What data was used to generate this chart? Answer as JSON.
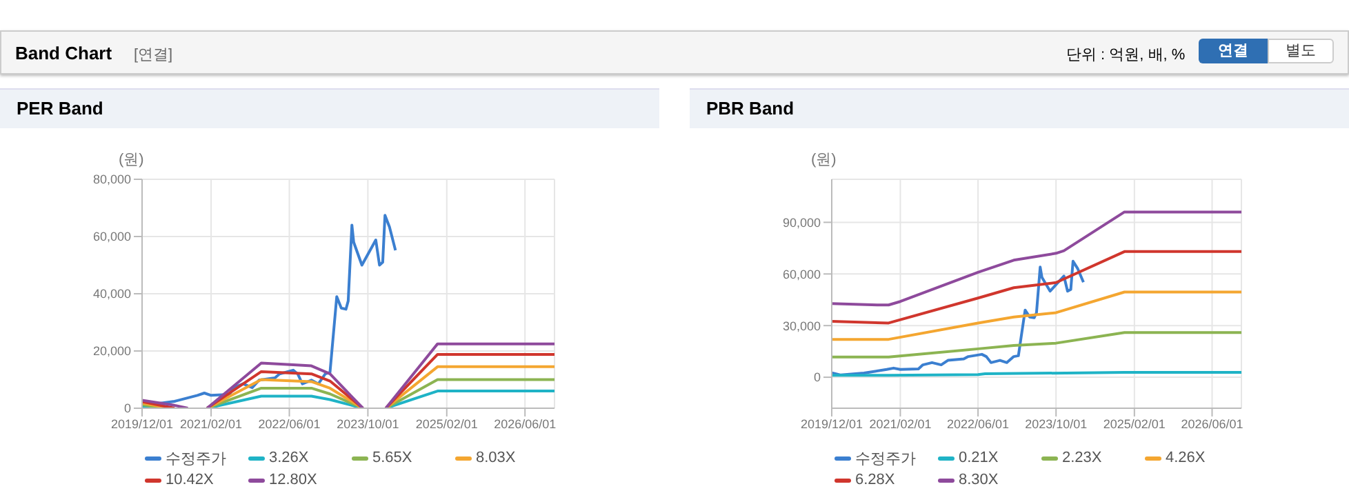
{
  "chart_data": [
    {
      "type": "line",
      "title": "PER Band",
      "ylabel": "(원)",
      "annotations": [
        "Band Chart",
        "[연결]",
        "단위 : 억원, 배, %",
        "연결",
        "별도"
      ],
      "xlim": [
        "2019-12-01",
        "2026-12-01"
      ],
      "xticks": [
        {
          "value": "2019-12-01",
          "label": "2019/12/01"
        },
        {
          "value": "2021-02-01",
          "label": "2021/02/01"
        },
        {
          "value": "2022-06-01",
          "label": "2022/06/01"
        },
        {
          "value": "2023-10-01",
          "label": "2023/10/01"
        },
        {
          "value": "2025-02-01",
          "label": "2025/02/01"
        },
        {
          "value": "2026-06-01",
          "label": "2026/06/01"
        }
      ],
      "ylim": [
        0,
        80000
      ],
      "yticks": [
        {
          "value": 0,
          "label": "0"
        },
        {
          "value": 20000,
          "label": "20,000"
        },
        {
          "value": 40000,
          "label": "40,000"
        },
        {
          "value": 60000,
          "label": "60,000"
        },
        {
          "value": 80000,
          "label": "80,000"
        }
      ],
      "grid": true,
      "legend": "bottom",
      "series": [
        {
          "name": "수정주가",
          "color": "#3b7fd0",
          "x": [
            "2019-12-01",
            "2020-01-27",
            "2020-06-19",
            "2020-11-08",
            "2020-12-21",
            "2021-02-01",
            "2021-05-25",
            "2021-06-22",
            "2021-08-18",
            "2021-10-14",
            "2021-11-25",
            "2022-03-04",
            "2022-04-01",
            "2022-06-25",
            "2022-07-23",
            "2022-08-21",
            "2022-10-16",
            "2022-11-28",
            "2023-01-10",
            "2023-02-08",
            "2023-03-22",
            "2023-04-19",
            "2023-05-18",
            "2023-06-01",
            "2023-06-24",
            "2023-07-05",
            "2023-08-25",
            "2023-11-19",
            "2023-12-12",
            "2024-01-01",
            "2024-01-15",
            "2024-02-12",
            "2024-03-20"
          ],
          "values": [
            2600,
            1300,
            2400,
            4500,
            5300,
            4500,
            4800,
            7200,
            8500,
            7200,
            9800,
            10600,
            12000,
            13300,
            12000,
            8500,
            9800,
            8500,
            12000,
            12500,
            39000,
            35000,
            34600,
            37500,
            64000,
            58000,
            50000,
            58800,
            50000,
            51000,
            67400,
            63300,
            55200
          ]
        },
        {
          "name": "3.26X",
          "color": "#1fb3c6",
          "x": [
            "2019-12-01",
            "2020-03-24",
            "2020-11-01",
            "2021-01-07",
            "2021-12-09",
            "2022-10-16",
            "2023-02-08",
            "2023-08-31",
            "2023-11-01",
            "2024-01-20",
            "2024-12-06",
            "2026-12-01"
          ],
          "values": [
            700,
            0,
            null,
            0,
            4200,
            4200,
            3000,
            0,
            null,
            0,
            6000,
            6000
          ]
        },
        {
          "name": "5.65X",
          "color": "#8cb452",
          "x": [
            "2019-12-01",
            "2020-04-21",
            "2020-11-01",
            "2021-01-07",
            "2021-12-09",
            "2022-10-16",
            "2023-02-08",
            "2023-08-31",
            "2023-11-01",
            "2024-01-20",
            "2024-12-06",
            "2026-12-01"
          ],
          "values": [
            1200,
            0,
            null,
            0,
            7000,
            7000,
            5000,
            0,
            null,
            0,
            10000,
            10000
          ]
        },
        {
          "name": "8.03X",
          "color": "#f4a630",
          "x": [
            "2019-12-01",
            "2020-05-19",
            "2020-11-01",
            "2021-01-07",
            "2021-12-09",
            "2022-10-16",
            "2023-02-08",
            "2023-08-31",
            "2023-11-01",
            "2024-01-20",
            "2024-12-06",
            "2026-12-01"
          ],
          "values": [
            1800,
            0,
            null,
            0,
            10000,
            9300,
            7000,
            0,
            null,
            0,
            14500,
            14500
          ]
        },
        {
          "name": "10.42X",
          "color": "#d0362d",
          "x": [
            "2019-12-01",
            "2020-06-19",
            "2020-11-01",
            "2021-01-07",
            "2021-12-09",
            "2022-10-16",
            "2023-02-08",
            "2023-08-31",
            "2023-11-01",
            "2024-01-20",
            "2024-12-06",
            "2026-12-01"
          ],
          "values": [
            2300,
            0,
            null,
            0,
            12800,
            12000,
            9500,
            0,
            null,
            0,
            18800,
            18800
          ]
        },
        {
          "name": "12.80X",
          "color": "#8e4a9c",
          "x": [
            "2019-12-01",
            "2020-06-19",
            "2020-09-10",
            "2020-11-01",
            "2021-01-07",
            "2021-12-09",
            "2022-06-25",
            "2022-10-16",
            "2023-02-08",
            "2023-08-31",
            "2023-11-01",
            "2024-01-20",
            "2024-12-06",
            "2026-12-01"
          ],
          "values": [
            2800,
            1000,
            0,
            null,
            0,
            15800,
            15200,
            14800,
            12000,
            0,
            null,
            0,
            22500,
            22500
          ]
        }
      ]
    },
    {
      "type": "line",
      "title": "PBR Band",
      "ylabel": "(원)",
      "xlim": [
        "2019-12-01",
        "2026-12-01"
      ],
      "xticks": [
        {
          "value": "2019-12-01",
          "label": "2019/12/01"
        },
        {
          "value": "2021-02-01",
          "label": "2021/02/01"
        },
        {
          "value": "2022-06-01",
          "label": "2022/06/01"
        },
        {
          "value": "2023-10-01",
          "label": "2023/10/01"
        },
        {
          "value": "2025-02-01",
          "label": "2025/02/01"
        },
        {
          "value": "2026-06-01",
          "label": "2026/06/01"
        }
      ],
      "ylim": [
        -18000,
        115000
      ],
      "yticks": [
        {
          "value": 0,
          "label": "0"
        },
        {
          "value": 30000,
          "label": "30,000"
        },
        {
          "value": 60000,
          "label": "60,000"
        },
        {
          "value": 90000,
          "label": "90,000"
        }
      ],
      "grid": true,
      "legend": "bottom",
      "series": [
        {
          "name": "수정주가",
          "color": "#3b7fd0",
          "x": [
            "2019-12-01",
            "2020-01-27",
            "2020-06-19",
            "2020-11-08",
            "2020-12-21",
            "2021-02-01",
            "2021-05-25",
            "2021-06-22",
            "2021-08-18",
            "2021-10-14",
            "2021-11-25",
            "2022-03-04",
            "2022-04-01",
            "2022-06-25",
            "2022-07-23",
            "2022-08-21",
            "2022-10-16",
            "2022-11-28",
            "2023-01-10",
            "2023-02-08",
            "2023-03-22",
            "2023-04-19",
            "2023-05-18",
            "2023-06-01",
            "2023-06-24",
            "2023-07-05",
            "2023-08-25",
            "2023-11-19",
            "2023-12-12",
            "2024-01-01",
            "2024-01-15",
            "2024-02-12",
            "2024-03-20"
          ],
          "values": [
            2600,
            1300,
            2400,
            4500,
            5300,
            4500,
            4800,
            7200,
            8500,
            7200,
            9800,
            10600,
            12000,
            13300,
            12000,
            8500,
            9800,
            8500,
            12000,
            12500,
            39000,
            35000,
            34600,
            37500,
            64000,
            58000,
            50000,
            58800,
            50000,
            51000,
            67400,
            63300,
            55200
          ]
        },
        {
          "name": "0.21X",
          "color": "#1fb3c6",
          "x": [
            "2019-12-01",
            "2020-11-20",
            "2022-06-01",
            "2022-07-15",
            "2024-12-01",
            "2026-12-01"
          ],
          "values": [
            1100,
            1100,
            1500,
            2000,
            2800,
            2800
          ]
        },
        {
          "name": "2.23X",
          "color": "#8cb452",
          "x": [
            "2019-12-01",
            "2020-11-20",
            "2022-06-01",
            "2023-01-10",
            "2023-10-01",
            "2024-12-01",
            "2026-12-01"
          ],
          "values": [
            11700,
            11700,
            16500,
            18500,
            19800,
            26000,
            26000
          ]
        },
        {
          "name": "4.26X",
          "color": "#f4a630",
          "x": [
            "2019-12-01",
            "2020-11-20",
            "2022-06-01",
            "2023-01-10",
            "2023-10-01",
            "2024-12-01",
            "2026-12-01"
          ],
          "values": [
            22000,
            22000,
            31500,
            35000,
            37500,
            49500,
            49500
          ]
        },
        {
          "name": "6.28X",
          "color": "#d0362d",
          "x": [
            "2019-12-01",
            "2020-11-20",
            "2022-06-01",
            "2023-01-10",
            "2023-10-01",
            "2024-12-01",
            "2026-12-01"
          ],
          "values": [
            32500,
            31500,
            46000,
            52000,
            55000,
            73000,
            73000
          ]
        },
        {
          "name": "8.30X",
          "color": "#8e4a9c",
          "x": [
            "2019-12-01",
            "2020-09-10",
            "2020-11-20",
            "2021-02-01",
            "2022-06-01",
            "2023-01-10",
            "2023-10-01",
            "2023-11-19",
            "2024-12-01",
            "2026-12-01"
          ],
          "values": [
            42800,
            42000,
            42000,
            44000,
            61000,
            68000,
            72000,
            73500,
            96000,
            96000
          ]
        }
      ]
    }
  ]
}
